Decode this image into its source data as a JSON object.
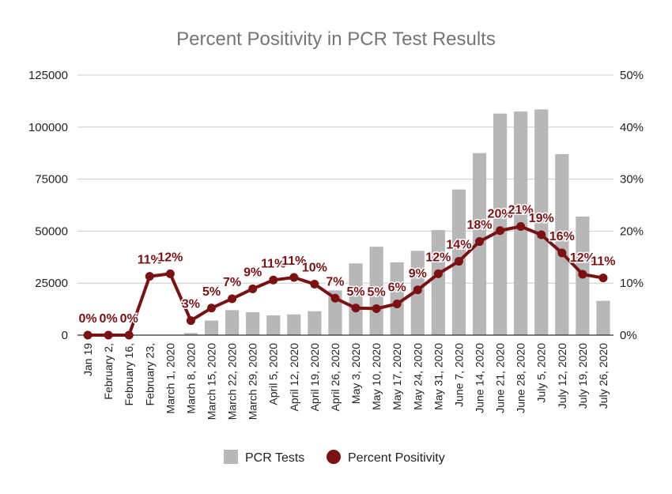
{
  "chart_data": {
    "type": "bar+line",
    "title": "Percent Positivity in PCR Test Results",
    "categories": [
      "Jan 19",
      "February 2,",
      "February 16,",
      "February 23,",
      "March 1, 2020",
      "March 8, 2020",
      "March 15, 2020",
      "March 22, 2020",
      "March 29, 2020",
      "April 5, 2020",
      "April 12, 2020",
      "April 19, 2020",
      "April 26, 2020",
      "May 3, 2020",
      "May 10, 2020",
      "May 17, 2020",
      "May 24, 2020",
      "May 31, 2020",
      "June 7, 2020",
      "June 14, 2020",
      "June 21, 2020",
      "June 28, 2020",
      "July 5, 2020",
      "July 12, 2020",
      "July 19, 2020",
      "July 26, 2020"
    ],
    "series": [
      {
        "name": "PCR Tests",
        "type": "bar",
        "axis": "left",
        "color": "#b7b7b7",
        "values": [
          0,
          0,
          0,
          0,
          0,
          1000,
          7000,
          12000,
          11000,
          9500,
          10000,
          11500,
          21500,
          34500,
          42500,
          35000,
          40500,
          50500,
          70000,
          87500,
          106500,
          107500,
          108500,
          87000,
          57000,
          16500
        ]
      },
      {
        "name": "Percent Positivity",
        "type": "line",
        "axis": "right",
        "color": "#7b1113",
        "values": [
          0,
          0,
          0,
          11.3,
          11.8,
          2.8,
          5.2,
          7,
          8.9,
          10.6,
          11.1,
          9.8,
          7.1,
          5.2,
          5.1,
          6,
          8.7,
          11.8,
          14.2,
          18,
          20.1,
          20.9,
          19.3,
          15.8,
          11.7,
          11
        ],
        "labels": [
          "0%",
          "0%",
          "0%",
          "11%",
          "12%",
          "3%",
          "5%",
          "7%",
          "9%",
          "11%",
          "11%",
          "10%",
          "7%",
          "5%",
          "5%",
          "6%",
          "9%",
          "12%",
          "14%",
          "18%",
          "20%",
          "21%",
          "19%",
          "16%",
          "12%",
          "11%"
        ]
      }
    ],
    "ylim_left": [
      0,
      125000
    ],
    "yticks_left": [
      "0",
      "25000",
      "50000",
      "75000",
      "100000",
      "125000"
    ],
    "ylim_right": [
      0,
      50
    ],
    "yticks_right": [
      "0%",
      "10%",
      "20%",
      "30%",
      "40%",
      "50%"
    ],
    "grid": true,
    "legend": "bottom",
    "legend_items": [
      {
        "label": "PCR Tests",
        "symbol": "square",
        "color": "#b7b7b7"
      },
      {
        "label": "Percent Positivity",
        "symbol": "circle",
        "color": "#7b1113"
      }
    ]
  }
}
